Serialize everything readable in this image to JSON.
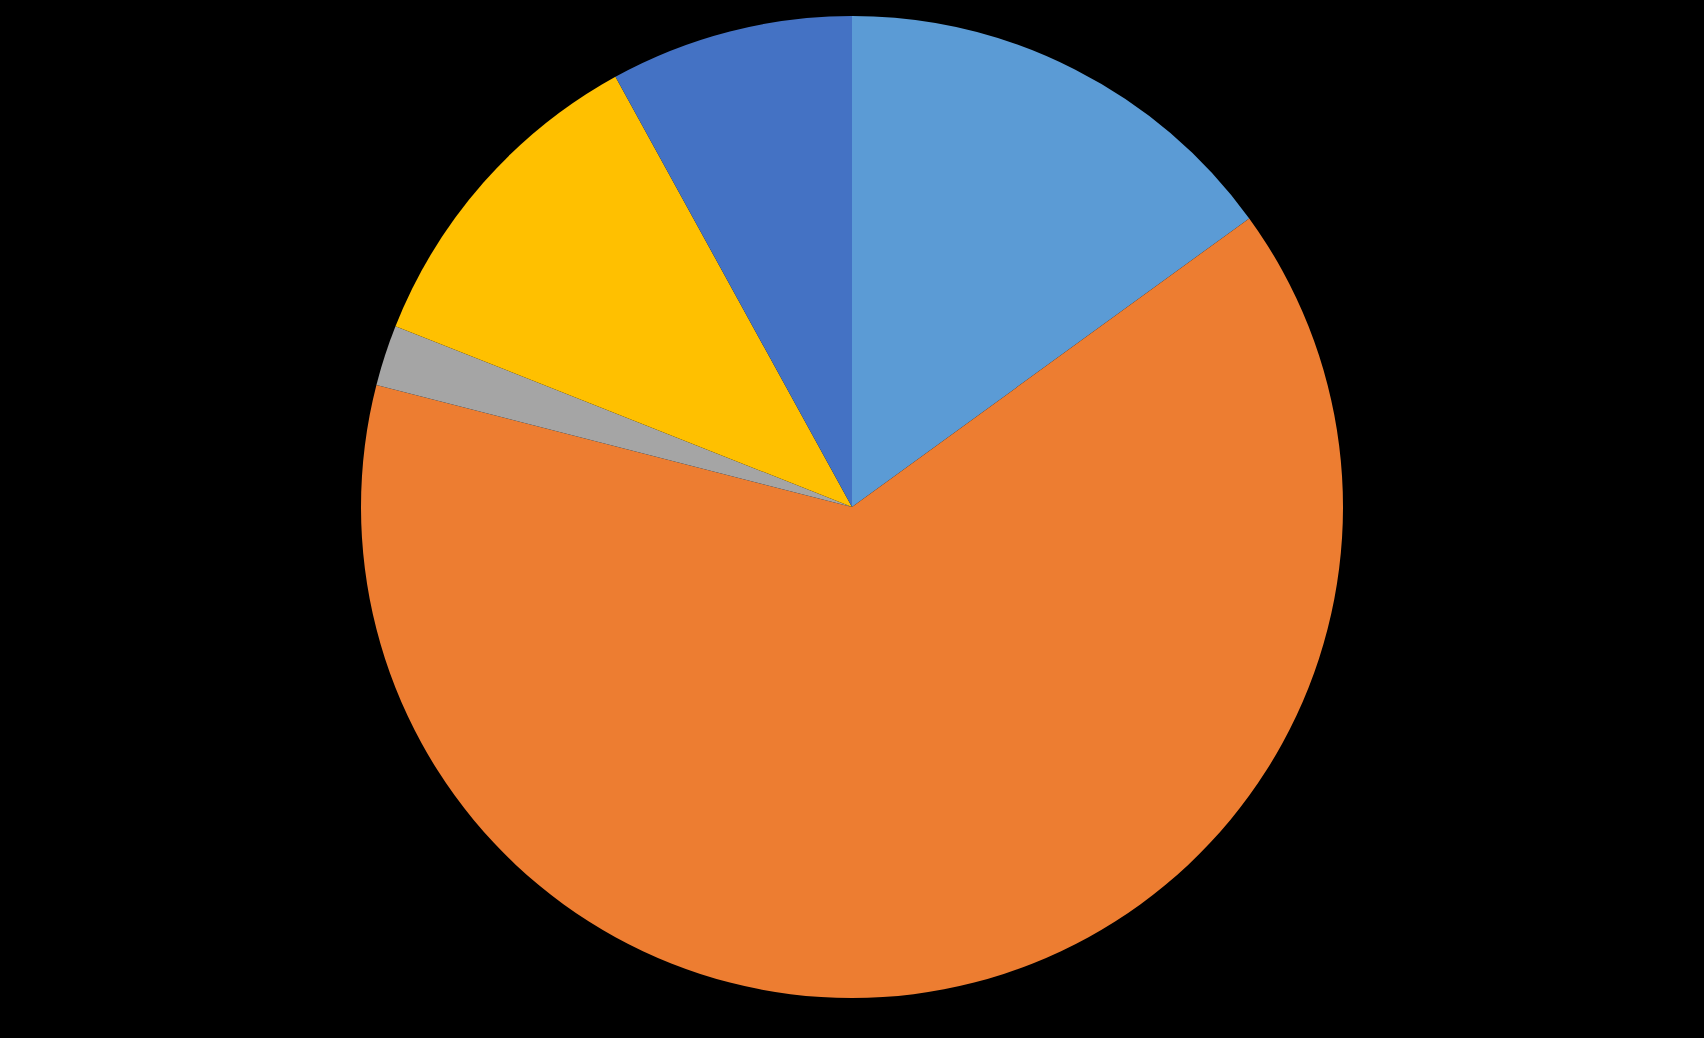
{
  "chart_data": {
    "type": "pie",
    "categories": [
      null,
      null,
      null,
      null,
      null
    ],
    "values": [
      15,
      64,
      2,
      11,
      8
    ],
    "colors": [
      "#5b9bd5",
      "#ed7d31",
      "#a5a5a5",
      "#ffc000",
      "#4472c4"
    ]
  }
}
